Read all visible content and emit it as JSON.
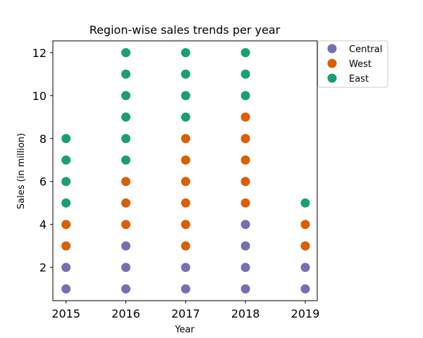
{
  "chart_data": {
    "type": "scatter",
    "title": "Region-wise sales trends per year",
    "xlabel": "Year",
    "ylabel": "Sales (in million)",
    "x_ticks": [
      "2015",
      "2016",
      "2017",
      "2018",
      "2019"
    ],
    "y_ticks": [
      "2",
      "4",
      "6",
      "8",
      "10",
      "12"
    ],
    "xlim": [
      2014.78,
      2019.2
    ],
    "ylim": [
      0.45,
      12.55
    ],
    "grid": false,
    "legend_position": "outside-top-right",
    "series": [
      {
        "name": "Central",
        "color": "#7570b3",
        "points": [
          {
            "x": 2015,
            "y": 1
          },
          {
            "x": 2015,
            "y": 2
          },
          {
            "x": 2016,
            "y": 1
          },
          {
            "x": 2016,
            "y": 2
          },
          {
            "x": 2016,
            "y": 3
          },
          {
            "x": 2017,
            "y": 1
          },
          {
            "x": 2017,
            "y": 2
          },
          {
            "x": 2018,
            "y": 1
          },
          {
            "x": 2018,
            "y": 2
          },
          {
            "x": 2018,
            "y": 3
          },
          {
            "x": 2018,
            "y": 4
          },
          {
            "x": 2019,
            "y": 1
          },
          {
            "x": 2019,
            "y": 2
          }
        ]
      },
      {
        "name": "West",
        "color": "#d95f02",
        "points": [
          {
            "x": 2015,
            "y": 3
          },
          {
            "x": 2015,
            "y": 4
          },
          {
            "x": 2016,
            "y": 4
          },
          {
            "x": 2016,
            "y": 5
          },
          {
            "x": 2016,
            "y": 6
          },
          {
            "x": 2017,
            "y": 3
          },
          {
            "x": 2017,
            "y": 4
          },
          {
            "x": 2017,
            "y": 5
          },
          {
            "x": 2017,
            "y": 6
          },
          {
            "x": 2017,
            "y": 7
          },
          {
            "x": 2017,
            "y": 8
          },
          {
            "x": 2018,
            "y": 5
          },
          {
            "x": 2018,
            "y": 6
          },
          {
            "x": 2018,
            "y": 7
          },
          {
            "x": 2018,
            "y": 8
          },
          {
            "x": 2018,
            "y": 9
          },
          {
            "x": 2019,
            "y": 3
          },
          {
            "x": 2019,
            "y": 4
          }
        ]
      },
      {
        "name": "East",
        "color": "#1b9e77",
        "points": [
          {
            "x": 2015,
            "y": 5
          },
          {
            "x": 2015,
            "y": 6
          },
          {
            "x": 2015,
            "y": 7
          },
          {
            "x": 2015,
            "y": 8
          },
          {
            "x": 2016,
            "y": 7
          },
          {
            "x": 2016,
            "y": 8
          },
          {
            "x": 2016,
            "y": 9
          },
          {
            "x": 2016,
            "y": 10
          },
          {
            "x": 2016,
            "y": 11
          },
          {
            "x": 2016,
            "y": 12
          },
          {
            "x": 2017,
            "y": 9
          },
          {
            "x": 2017,
            "y": 10
          },
          {
            "x": 2017,
            "y": 11
          },
          {
            "x": 2017,
            "y": 12
          },
          {
            "x": 2018,
            "y": 10
          },
          {
            "x": 2018,
            "y": 11
          },
          {
            "x": 2018,
            "y": 12
          },
          {
            "x": 2019,
            "y": 5
          }
        ]
      }
    ]
  }
}
